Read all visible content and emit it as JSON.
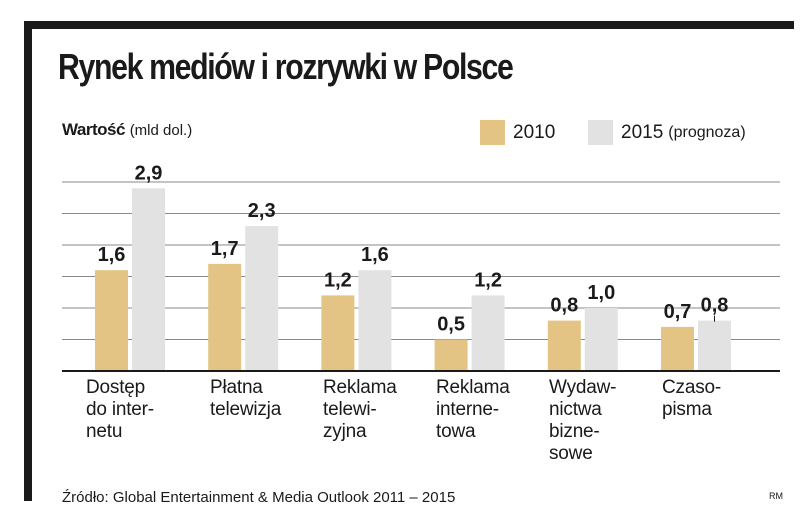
{
  "colors": {
    "bar2010": "#e3c484",
    "bar2015": "#e2e2e2",
    "grid": "#8a8a8a",
    "text": "#1a1a1a",
    "frame": "#1a1a1a"
  },
  "chart_data": {
    "type": "bar",
    "title": "Rynek mediów i rozrywki w Polsce",
    "ylabel_bold": "Wartość",
    "ylabel_unit": "(mld dol.)",
    "ylim": [
      0,
      3.2
    ],
    "categories": [
      "Dostęp\ndo inter-\nnetu",
      "Płatna\ntelewizja",
      "Reklama\ntelewi-\nzyjna",
      "Reklama\ninterne-\ntowa",
      "Wydaw-\nnictwa\nbizne-\nsowe",
      "Czaso-\npisma"
    ],
    "series": [
      {
        "name": "2010",
        "legend_suffix": "",
        "values": [
          1.6,
          1.7,
          1.2,
          0.5,
          0.8,
          0.7
        ],
        "labels": [
          "1,6",
          "1,7",
          "1,2",
          "0,5",
          "0,8",
          "0,7"
        ]
      },
      {
        "name": "2015",
        "legend_suffix": "(prognoza)",
        "values": [
          2.9,
          2.3,
          1.6,
          1.2,
          1.0,
          0.8
        ],
        "labels": [
          "2,9",
          "2,3",
          "1,6",
          "1,2",
          "1,0",
          "0,8"
        ]
      }
    ],
    "source": "Źródło: Global Entertainment & Media Outlook 2011 – 2015",
    "credit": "RM"
  }
}
